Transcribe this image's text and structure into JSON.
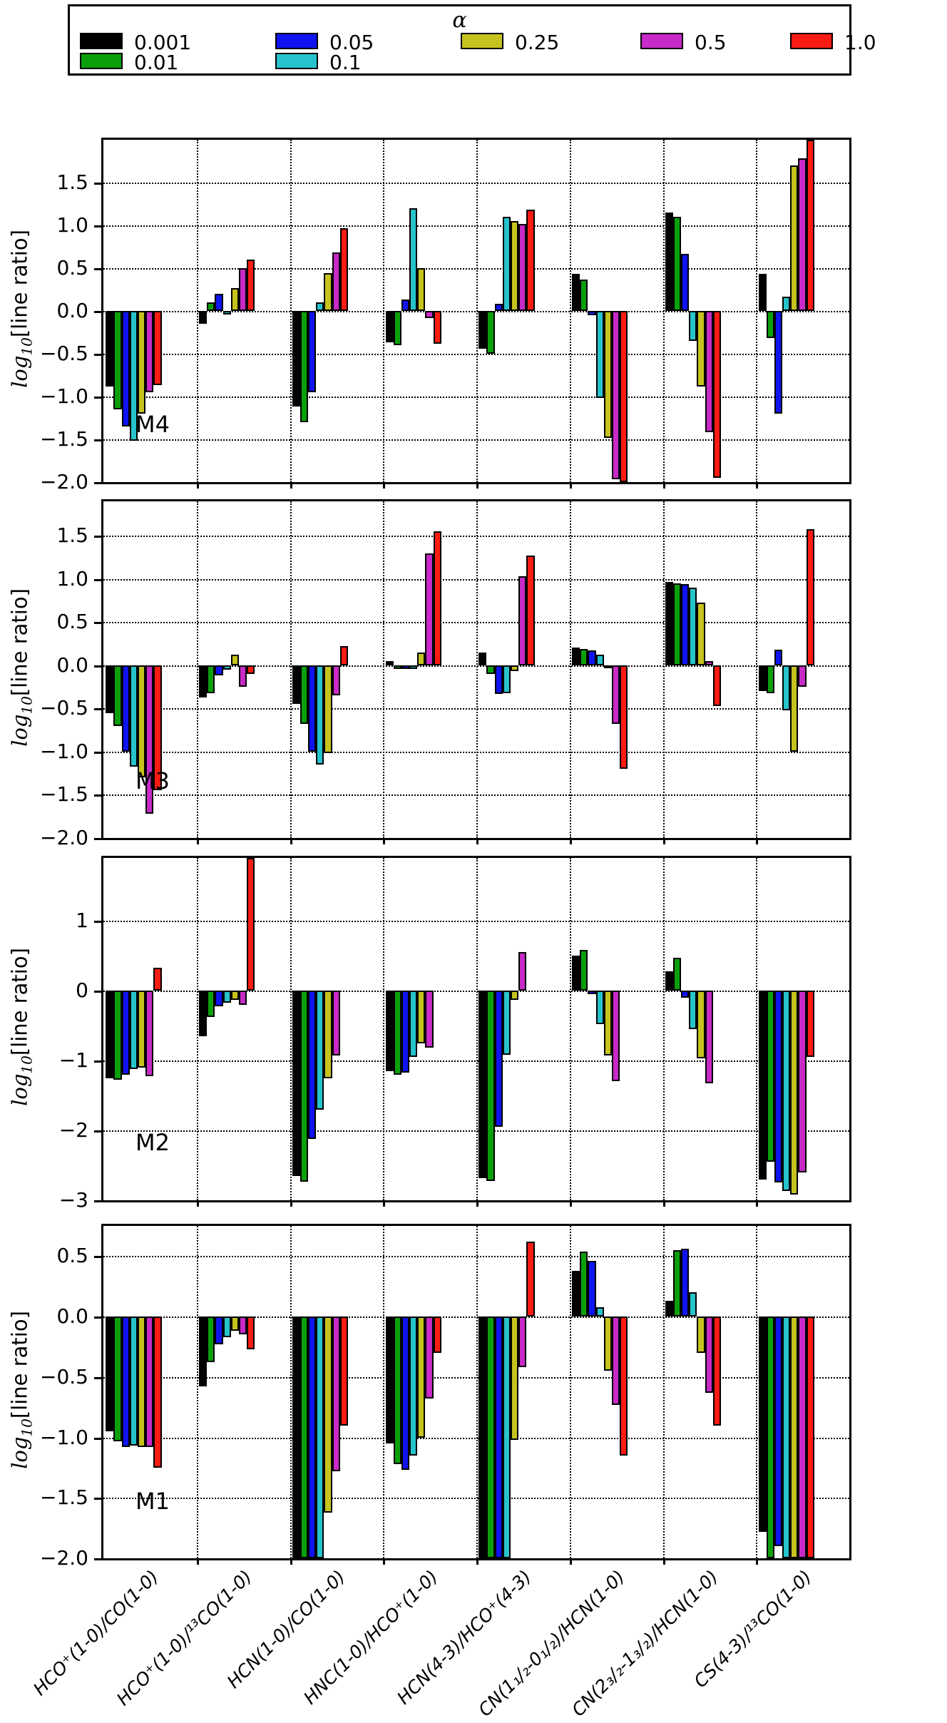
{
  "legend": {
    "title": "α",
    "items": [
      {
        "label": "0.001",
        "color": "#000000"
      },
      {
        "label": "0.01",
        "color": "#0ba00b"
      },
      {
        "label": "0.05",
        "color": "#0f14ee"
      },
      {
        "label": "0.1",
        "color": "#27c3cc"
      },
      {
        "label": "0.25",
        "color": "#c6c31f"
      },
      {
        "label": "0.5",
        "color": "#c72ac7"
      },
      {
        "label": "1.0",
        "color": "#fa1b12"
      }
    ],
    "columns": [
      [
        0,
        1
      ],
      [
        2,
        3
      ],
      [
        4
      ],
      [
        5
      ],
      [
        6
      ]
    ]
  },
  "ylabel": {
    "prefix": "log",
    "sub": "10",
    "suffix": "[line ratio]"
  },
  "chart_data": {
    "type": "bar",
    "grid": "dotted",
    "legend_position": "top",
    "categories": [
      "HCO⁺(1-0)/CO(1-0)",
      "HCO⁺(1-0)/¹³CO(1-0)",
      "HCN(1-0)/CO(1-0)",
      "HNC(1-0)/HCO⁺(1-0)",
      "HCN(4-3)/HCO⁺(4-3)",
      "CN(1₁/₂-0₁/₂)/HCN(1-0)",
      "CN(2₃/₂-1₃/₂)/HCN(1-0)",
      "CS(4-3)/¹³CO(1-0)"
    ],
    "alpha_values": [
      "0.001",
      "0.01",
      "0.05",
      "0.1",
      "0.25",
      "0.5",
      "1.0"
    ],
    "panels": [
      {
        "name": "M4",
        "ylim": [
          -2.0,
          2.0
        ],
        "yticks": [
          1.5,
          1.0,
          0.5,
          0.0,
          -0.5,
          -1.0,
          -1.5,
          -2.0
        ],
        "ytick_labels": [
          "1.5",
          "1.0",
          "0.5",
          "0.0",
          "−0.5",
          "−1.0",
          "−1.5",
          "−2.0"
        ],
        "series": [
          {
            "name": "0.001",
            "values": [
              -0.88,
              -0.15,
              -1.12,
              -0.37,
              -0.44,
              0.43,
              1.15,
              0.43
            ]
          },
          {
            "name": "0.01",
            "values": [
              -1.15,
              0.1,
              -1.3,
              -0.4,
              -0.5,
              0.37,
              1.1,
              -0.32
            ]
          },
          {
            "name": "0.05",
            "values": [
              -1.35,
              0.2,
              -0.95,
              0.13,
              0.08,
              -0.05,
              0.67,
              -1.2
            ]
          },
          {
            "name": "0.1",
            "values": [
              -1.52,
              -0.04,
              0.1,
              1.2,
              1.1,
              -1.02,
              -0.35,
              0.17
            ]
          },
          {
            "name": "0.25",
            "values": [
              -1.2,
              0.27,
              0.44,
              0.5,
              1.05,
              -1.48,
              -0.88,
              1.7
            ]
          },
          {
            "name": "0.5",
            "values": [
              -0.95,
              0.5,
              0.68,
              -0.08,
              1.02,
              -1.97,
              -1.42,
              1.78
            ]
          },
          {
            "name": "1.0",
            "values": [
              -0.87,
              0.6,
              0.97,
              -0.38,
              1.18,
              -2.0,
              -1.95,
              2.0
            ]
          }
        ]
      },
      {
        "name": "M3",
        "ylim": [
          -2.0,
          1.9
        ],
        "yticks": [
          1.5,
          1.0,
          0.5,
          0.0,
          -0.5,
          -1.0,
          -1.5,
          -2.0
        ],
        "ytick_labels": [
          "1.5",
          "1.0",
          "0.5",
          "0.0",
          "−0.5",
          "−1.0",
          "−1.5",
          "−2.0"
        ],
        "series": [
          {
            "name": "0.001",
            "values": [
              -0.55,
              -0.37,
              -0.45,
              0.05,
              0.15,
              0.21,
              0.97,
              -0.3
            ]
          },
          {
            "name": "0.01",
            "values": [
              -0.7,
              -0.32,
              -0.68,
              -0.04,
              -0.1,
              0.19,
              0.95,
              -0.32
            ]
          },
          {
            "name": "0.05",
            "values": [
              -1.0,
              -0.12,
              -1.0,
              -0.04,
              -0.33,
              0.17,
              0.94,
              0.18
            ]
          },
          {
            "name": "0.1",
            "values": [
              -1.17,
              -0.05,
              -1.15,
              -0.04,
              -0.32,
              0.12,
              0.9,
              -0.52
            ]
          },
          {
            "name": "0.25",
            "values": [
              -1.3,
              0.12,
              -1.02,
              0.15,
              -0.07,
              -0.03,
              0.73,
              -1.0
            ]
          },
          {
            "name": "0.5",
            "values": [
              -1.72,
              -0.25,
              -0.35,
              1.3,
              1.03,
              -0.68,
              0.05,
              -0.25
            ]
          },
          {
            "name": "1.0",
            "values": [
              -1.45,
              -0.1,
              0.22,
              1.55,
              1.27,
              -1.2,
              -0.47,
              1.58
            ]
          }
        ]
      },
      {
        "name": "M2",
        "ylim": [
          -3.0,
          1.9
        ],
        "yticks": [
          1,
          0,
          -1,
          -2,
          -3
        ],
        "ytick_labels": [
          "1",
          "0",
          "−1",
          "−2",
          "−3"
        ],
        "series": [
          {
            "name": "0.001",
            "values": [
              -1.25,
              -0.65,
              -2.65,
              -1.15,
              -2.68,
              0.5,
              0.28,
              -2.7
            ]
          },
          {
            "name": "0.01",
            "values": [
              -1.27,
              -0.38,
              -2.73,
              -1.2,
              -2.72,
              0.58,
              0.47,
              -2.45
            ]
          },
          {
            "name": "0.05",
            "values": [
              -1.2,
              -0.22,
              -2.12,
              -1.17,
              -1.95,
              -0.05,
              -0.1,
              -2.75
            ]
          },
          {
            "name": "0.1",
            "values": [
              -1.12,
              -0.17,
              -1.7,
              -0.95,
              -0.92,
              -0.48,
              -0.55,
              -2.87
            ]
          },
          {
            "name": "0.25",
            "values": [
              -1.1,
              -0.13,
              -1.25,
              -0.75,
              -0.13,
              -0.93,
              -0.97,
              -2.92
            ]
          },
          {
            "name": "0.5",
            "values": [
              -1.22,
              -0.2,
              -0.93,
              -0.82,
              0.55,
              -1.3,
              -1.33,
              -2.6
            ]
          },
          {
            "name": "1.0",
            "values": [
              0.33,
              1.9,
              0,
              0,
              0,
              0,
              0,
              -0.95
            ]
          }
        ]
      },
      {
        "name": "M1",
        "ylim": [
          -2.0,
          0.75
        ],
        "yticks": [
          0.5,
          0.0,
          -0.5,
          -1.0,
          -1.5,
          -2.0
        ],
        "ytick_labels": [
          "0.5",
          "0.0",
          "−0.5",
          "−1.0",
          "−1.5",
          "−2.0"
        ],
        "series": [
          {
            "name": "0.001",
            "values": [
              -0.95,
              -0.58,
              -2.0,
              -1.05,
              -2.0,
              0.38,
              0.13,
              -1.78
            ]
          },
          {
            "name": "0.01",
            "values": [
              -1.03,
              -0.38,
              -2.0,
              -1.22,
              -2.0,
              0.54,
              0.55,
              -2.0
            ]
          },
          {
            "name": "0.05",
            "values": [
              -1.08,
              -0.23,
              -2.0,
              -1.27,
              -2.0,
              0.46,
              0.56,
              -1.9
            ]
          },
          {
            "name": "0.1",
            "values": [
              -1.07,
              -0.17,
              -2.0,
              -1.15,
              -2.0,
              0.08,
              0.2,
              -2.0
            ]
          },
          {
            "name": "0.25",
            "values": [
              -1.08,
              -0.12,
              -1.62,
              -1.0,
              -1.02,
              -0.45,
              -0.3,
              -2.0
            ]
          },
          {
            "name": "0.5",
            "values": [
              -1.08,
              -0.15,
              -1.28,
              -0.68,
              -0.42,
              -0.73,
              -0.63,
              -2.0
            ]
          },
          {
            "name": "1.0",
            "values": [
              -1.25,
              -0.27,
              -0.9,
              -0.3,
              0.62,
              -1.15,
              -0.9,
              -2.0
            ]
          }
        ]
      }
    ]
  }
}
